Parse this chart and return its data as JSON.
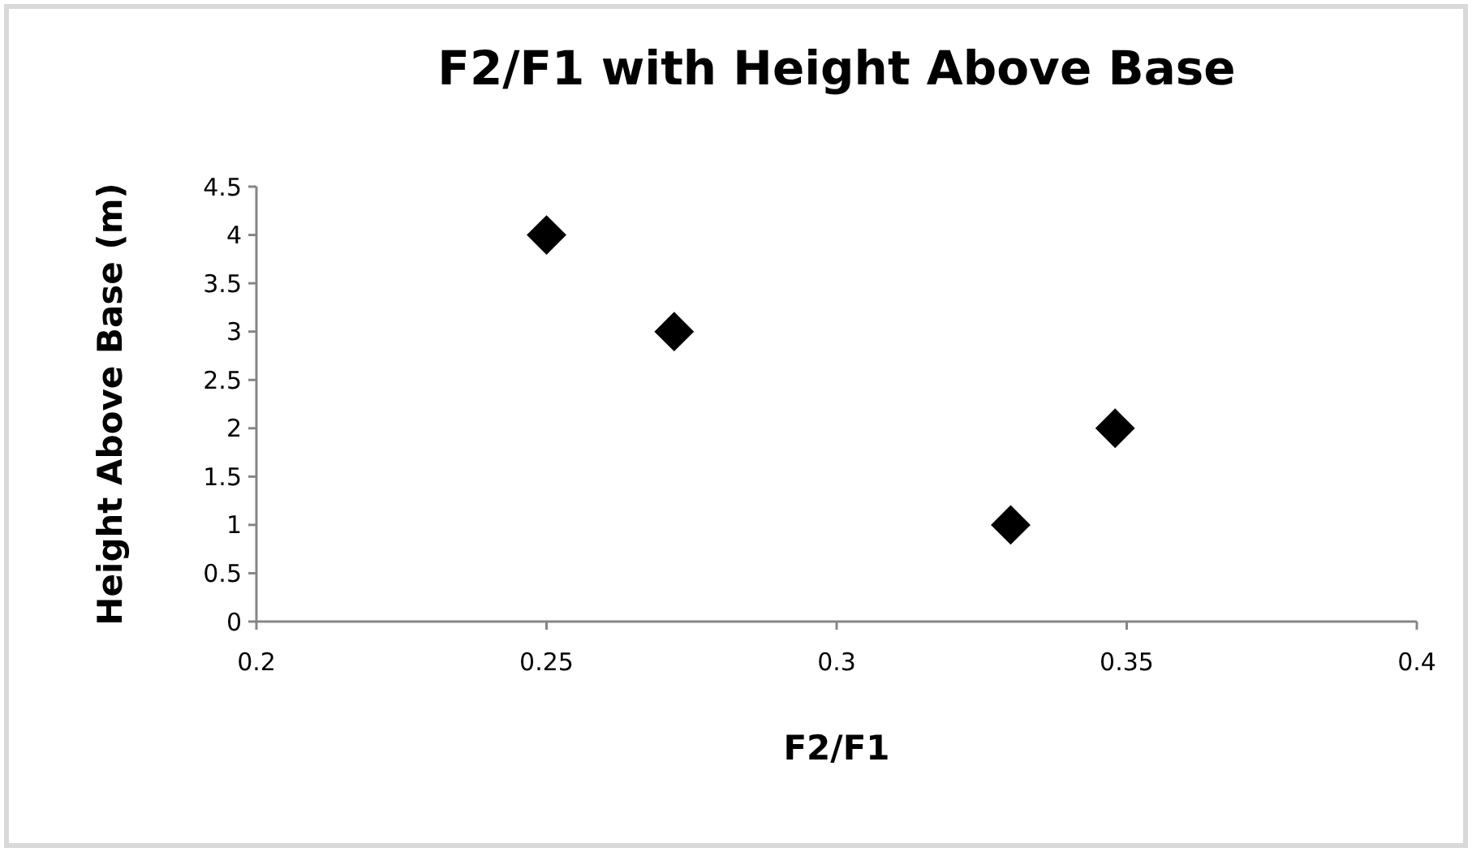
{
  "chart_data": {
    "type": "scatter",
    "title": "F2/F1 with Height Above Base",
    "xlabel": "F2/F1",
    "ylabel": "Height Above Base (m)",
    "x": [
      0.25,
      0.272,
      0.33,
      0.348
    ],
    "series": [
      {
        "color": "#000000",
        "values": [
          4,
          3,
          1,
          2
        ]
      }
    ],
    "xlim": [
      0.2,
      0.4
    ],
    "xticks": [
      0.2,
      0.25,
      0.3,
      0.35,
      0.4
    ],
    "ylim": [
      0,
      4.5
    ],
    "yticks": [
      0,
      0.5,
      1,
      1.5,
      2,
      2.5,
      3,
      3.5,
      4,
      4.5
    ],
    "grid": false,
    "marker": "diamond"
  }
}
